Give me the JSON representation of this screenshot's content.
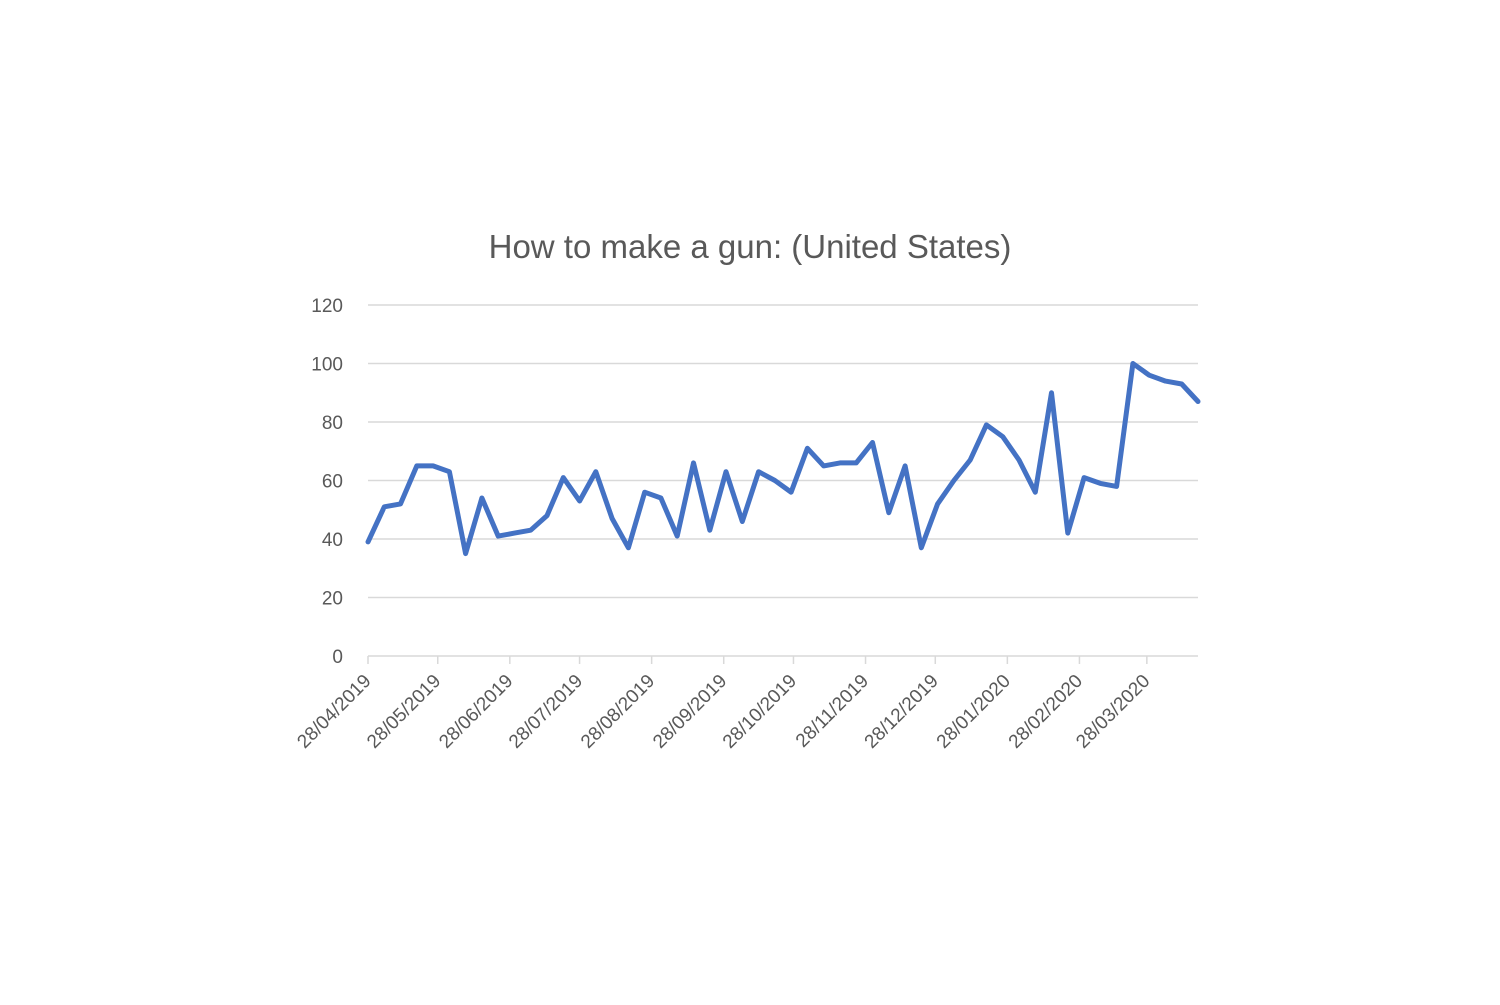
{
  "chart_data": {
    "type": "line",
    "title": "How to make a gun: (United States)",
    "xlabel": "",
    "ylabel": "",
    "ylim": [
      0,
      120
    ],
    "y_ticks": [
      0,
      20,
      40,
      60,
      80,
      100,
      120
    ],
    "x_tick_labels": [
      "28/04/2019",
      "28/05/2019",
      "28/06/2019",
      "28/07/2019",
      "28/08/2019",
      "28/09/2019",
      "28/10/2019",
      "28/11/2019",
      "28/12/2019",
      "28/01/2020",
      "28/02/2020",
      "28/03/2020"
    ],
    "grid": true,
    "legend": "none",
    "series_color": "#4472c4",
    "series": [
      {
        "x": [
          "28/04/2019",
          "05/05/2019",
          "12/05/2019",
          "19/05/2019",
          "26/05/2019",
          "02/06/2019",
          "09/06/2019",
          "16/06/2019",
          "23/06/2019",
          "30/06/2019",
          "07/07/2019",
          "14/07/2019",
          "21/07/2019",
          "28/07/2019",
          "04/08/2019",
          "11/08/2019",
          "18/08/2019",
          "25/08/2019",
          "01/09/2019",
          "08/09/2019",
          "15/09/2019",
          "22/09/2019",
          "29/09/2019",
          "06/10/2019",
          "13/10/2019",
          "20/10/2019",
          "27/10/2019",
          "03/11/2019",
          "10/11/2019",
          "17/11/2019",
          "24/11/2019",
          "01/12/2019",
          "08/12/2019",
          "15/12/2019",
          "22/12/2019",
          "29/12/2019",
          "05/01/2020",
          "12/01/2020",
          "19/01/2020",
          "26/01/2020",
          "02/02/2020",
          "09/02/2020",
          "16/02/2020",
          "23/02/2020",
          "01/03/2020",
          "08/03/2020",
          "15/03/2020",
          "22/03/2020",
          "29/03/2020",
          "05/04/2020",
          "12/04/2020",
          "19/04/2020"
        ],
        "values": [
          39,
          51,
          52,
          65,
          65,
          63,
          35,
          54,
          41,
          42,
          43,
          48,
          61,
          53,
          63,
          47,
          37,
          56,
          54,
          41,
          66,
          43,
          63,
          46,
          63,
          60,
          56,
          71,
          65,
          66,
          66,
          73,
          49,
          65,
          37,
          52,
          60,
          67,
          79,
          75,
          67,
          56,
          90,
          42,
          61,
          59,
          58,
          100,
          96,
          94,
          93,
          87
        ]
      }
    ]
  }
}
